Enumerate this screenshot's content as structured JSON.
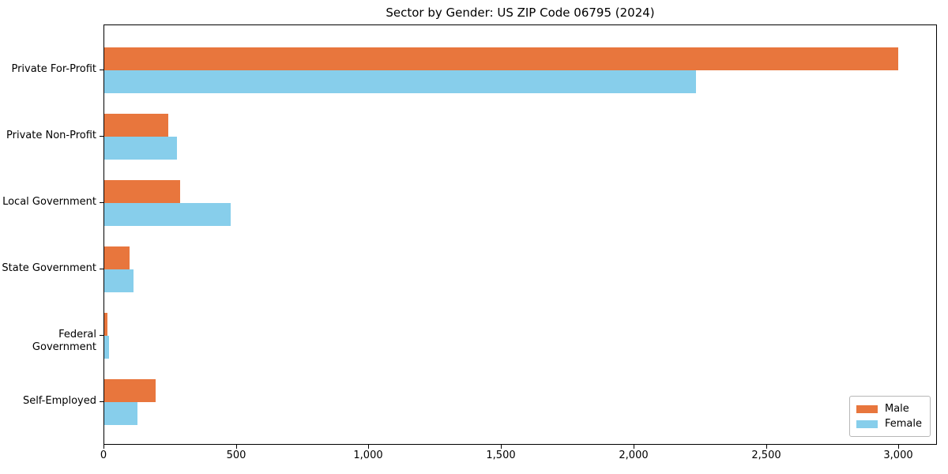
{
  "chart_data": {
    "type": "bar",
    "orientation": "horizontal",
    "title": "Sector by Gender: US ZIP Code 06795 (2024)",
    "categories": [
      "Private For-Profit",
      "Private Non-Profit",
      "Local Government",
      "State Government",
      "Federal Government",
      "Self-Employed"
    ],
    "series": [
      {
        "name": "Male",
        "color": "#e8763d",
        "values": [
          2995,
          241,
          287,
          96,
          13,
          194
        ]
      },
      {
        "name": "Female",
        "color": "#87ceeb",
        "values": [
          2233,
          275,
          476,
          110,
          18,
          124
        ]
      }
    ],
    "xlabel": "",
    "ylabel": "",
    "xlim": [
      0,
      3145
    ],
    "x_ticks": [
      0,
      500,
      1000,
      1500,
      2000,
      2500,
      3000
    ],
    "x_tick_labels": [
      "0",
      "500",
      "1,000",
      "1,500",
      "2,000",
      "2,500",
      "3,000"
    ],
    "legend_position": "lower right",
    "grid": false,
    "background_color": "#ffffff",
    "spine_color": "#000000"
  }
}
